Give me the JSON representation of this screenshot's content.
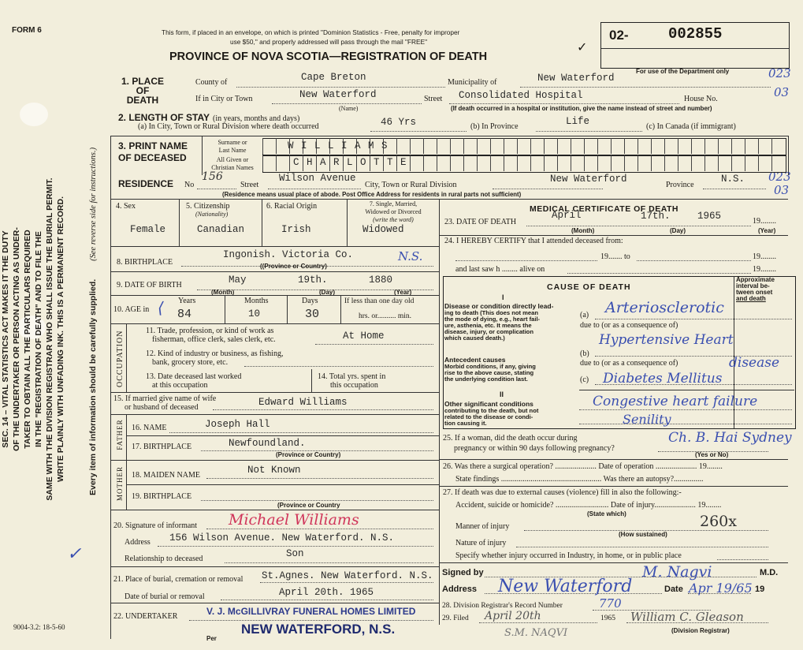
{
  "form_number": "FORM 6",
  "print_code": "9004-3.2: 18-5-60",
  "header_note_1": "This form, if placed in an envelope, on which is printed \"Dominion Statistics - Free, penalty for improper",
  "header_note_2": "use $50,\" and properly addressed will pass through the mail \"FREE\"",
  "title": "PROVINCE OF NOVA SCOTIA—REGISTRATION OF DEATH",
  "registration_prefix": "02-",
  "registration_number": "002855",
  "department_note": "For use of the Department only",
  "department_codes": [
    "023",
    "03",
    "023",
    "03"
  ],
  "side_notice": [
    "SEC. 14 – VITAL STATISTICS ACT MAKES IT THE DUTY",
    "OF THE UNDERTAKER OR PERSON ACTING AS UNDER-",
    "TAKER TO OBTAIN ALL THE PARTICULARS REQUIRED",
    "IN THE \"REGISTRATION OF DEATH\" AND TO FILE THE",
    "SAME WITH THE DIVISION REGISTRAR WHO SHALL ISSUE THE BURIAL PERMIT.",
    "WRITE PLAINLY WITH UNFADING INK. THIS IS A PERMANENT RECORD."
  ],
  "side_every_item": "Every item of information should be carefully supplied.",
  "side_see_reverse": "(See reverse side for instructions.)",
  "place": {
    "heading": [
      "1. PLACE",
      "OF",
      "DEATH"
    ],
    "county_label": "County of",
    "county": "Cape Breton",
    "municipality_label": "Municipality of",
    "municipality": "New Waterford",
    "city_label": "If in City or Town",
    "city": "New Waterford",
    "name_note": "(Name)",
    "street_label": "Street",
    "street": "Consolidated Hospital",
    "house_label": "House No.",
    "hospital_note": "(If death occurred in a hospital or institution, give the name instead of street and number)"
  },
  "stay": {
    "heading": "2. LENGTH OF STAY",
    "heading_note": "(in years, months and days)",
    "a_label": "(a) In City, Town or Rural Division where death occurred",
    "a": "46 Yrs",
    "b_label": "(b) In Province",
    "b": "Life",
    "c_label": "(c) In Canada (if immigrant)"
  },
  "name": {
    "heading": [
      "3. PRINT NAME",
      "OF DECEASED"
    ],
    "surname_label": [
      "Surname or",
      "Last Name"
    ],
    "surname": "W I L L I A M S",
    "given_label": [
      "All Given or",
      "Christian Names"
    ],
    "given": "C H A R L O T T E"
  },
  "residence": {
    "label": "RESIDENCE",
    "no_label": "No",
    "no": "156",
    "street_label": "Street",
    "street": "Wilson Avenue",
    "city_label": "City, Town or Rural Division",
    "city": "New Waterford",
    "province_label": "Province",
    "province": "N.S.",
    "note": "(Residence means usual place of abode. Post Office Address for residents in rural parts not sufficient)"
  },
  "sex": {
    "label": "4. Sex",
    "value": "Female"
  },
  "citizenship": {
    "label": "5. Citizenship",
    "sub": "(Nationality)",
    "value": "Canadian"
  },
  "racial": {
    "label": "6. Racial Origin",
    "value": "Irish"
  },
  "marital": {
    "label": [
      "7. Single, Married,",
      "Widowed or Divorced",
      "(write the word)"
    ],
    "value": "Widowed"
  },
  "birthplace": {
    "label": "8. BIRTHPLACE",
    "value": "Ingonish.   Victoria Co.",
    "hand": "N.S.",
    "note": "((Province or Country)"
  },
  "dob": {
    "label": "9. DATE OF BIRTH",
    "month": "May",
    "day": "19th.",
    "year": "1880",
    "month_note": "(Month)",
    "day_note": "(Day)",
    "year_note": "(Year)"
  },
  "age": {
    "label": "10. AGE in",
    "years_label": "Years",
    "years": "84",
    "months_label": "Months",
    "months": "10",
    "days_label": "Days",
    "days": "30",
    "less_label": "If less than one day old",
    "hrs_label": "hrs. or.......... min."
  },
  "occupation": {
    "side": "OCCUPATION",
    "q11": [
      "11. Trade, profession, or kind of work as",
      "fisherman, office clerk, sales clerk, etc."
    ],
    "a11": "At Home",
    "q12": [
      "12. Kind of industry or business, as fishing,",
      "bank, grocery store, etc."
    ],
    "q13": [
      "13. Date deceased last worked",
      "at this occupation"
    ],
    "q14": [
      "14. Total yrs. spent in",
      "this occupation"
    ]
  },
  "spouse": {
    "label": [
      "15. If married give name of wife",
      "or husband of deceased"
    ],
    "value": "Edward  Williams"
  },
  "father": {
    "side": "FATHER",
    "name_label": "16. NAME",
    "name": "Joseph Hall",
    "birthplace_label": "17. BIRTHPLACE",
    "birthplace": "Newfoundland.",
    "note": "(Province or Country)"
  },
  "mother": {
    "side": "MOTHER",
    "maiden_label": "18. MAIDEN NAME",
    "maiden": "Not Known",
    "birthplace_label": "19. BIRTHPLACE",
    "note": "(Province or Country"
  },
  "informant": {
    "label": "20. Signature of informant",
    "signature": "Michael Williams",
    "address_label": "Address",
    "address": "156 Wilson Avenue.  New Waterford. N.S.",
    "relationship_label": "Relationship to deceased",
    "relationship": "Son"
  },
  "burial": {
    "place_label": "21. Place of burial, cremation or removal",
    "place": "St.Agnes. New Waterford. N.S.",
    "date_label": "Date of burial or removal",
    "date": "April  20th. 1965"
  },
  "undertaker": {
    "label": "22. UNDERTAKER",
    "stamp_1": "V. J. McGILLIVRAY FUNERAL HOMES LIMITED",
    "stamp_2": "NEW WATERFORD, N.S.",
    "per_label": "Per"
  },
  "medical": {
    "heading": "MEDICAL CERTIFICATE OF DEATH",
    "date_label": "23. DATE OF DEATH",
    "month": "April",
    "day": "17th.",
    "year": "1965",
    "year_suffix": "19........",
    "month_note": "(Month)",
    "day_note": "(Day)",
    "year_note": "(Year)",
    "certify_label": "24. I HEREBY CERTIFY that I attended deceased from:",
    "from_to": "19....... to",
    "nineteen": "19........",
    "last_saw": "and last saw h ........ alive on"
  },
  "cause": {
    "heading": "CAUSE OF DEATH",
    "interval": [
      "Approximate",
      "interval be-",
      "tween onset",
      "and death"
    ],
    "part_1": "I",
    "direct_label": [
      "Disease or condition directly lead-",
      "ing to death (This does not mean",
      "the mode of dying, e.g., heart fail-",
      "ure, asthenia, etc. It means the",
      "disease, injury, or complication",
      "which caused death.)"
    ],
    "antecedent_label": [
      "Antecedent causes",
      "Morbid conditions, if any, giving",
      "rise to the above cause, stating",
      "the underlying condition last."
    ],
    "part_2": "II",
    "other_label": [
      "Other significant conditions",
      "contributing to the death, but not",
      "related to the disease or condi-",
      "tion causing it."
    ],
    "a_label": "(a)",
    "b_label": "(b)",
    "c_label": "(c)",
    "due_to": "due to (or as a consequence of)",
    "a": "Arteriosclerotic",
    "a2": "Hypertensive Heart",
    "b": "disease",
    "c": "Diabetes Mellitus",
    "other": "Congestive heart failure",
    "other2": "Senility"
  },
  "pregnancy": {
    "label": [
      "25. If a woman, did the death occur during",
      "pregnancy or within 90 days following pregnancy?"
    ],
    "note": "(Yes or No)",
    "hand": "Ch. B. Hai Sydney"
  },
  "surgery": {
    "label": "26. Was there a surgical operation? ..................... Date of operation ..................... 19........",
    "findings": "State findings ................................................... Was there an autopsy?..............."
  },
  "external": {
    "label": "27. If death was due to external causes (violence) fill in also the following:-",
    "accident": "Accident, suicide or homicide? ........................... Date of injury..................... 19........",
    "state_which": "(State which)",
    "manner": "Manner of injury",
    "how": "(How sustained)",
    "hand": "260x",
    "nature": "Nature of injury",
    "specify": "Specify whether injury occurred in Industry, in home, or in public place"
  },
  "signed": {
    "label": "Signed by",
    "md": "M.D.",
    "signature": "M. Nagvi",
    "address_label": "Address",
    "address": "New Waterford",
    "date_label": "Date",
    "date_19": "19",
    "date": "Apr 19/65"
  },
  "registrar": {
    "record_label": "28. Division Registrar's Record Number",
    "record": "770",
    "filed_label": "29. Filed",
    "filed": "April 20th",
    "filed_year": "1965",
    "registrar_sig": "William C. Gleason",
    "registrar_note": "(Division Registrar)",
    "pencil": "S.M. NAQVI"
  }
}
